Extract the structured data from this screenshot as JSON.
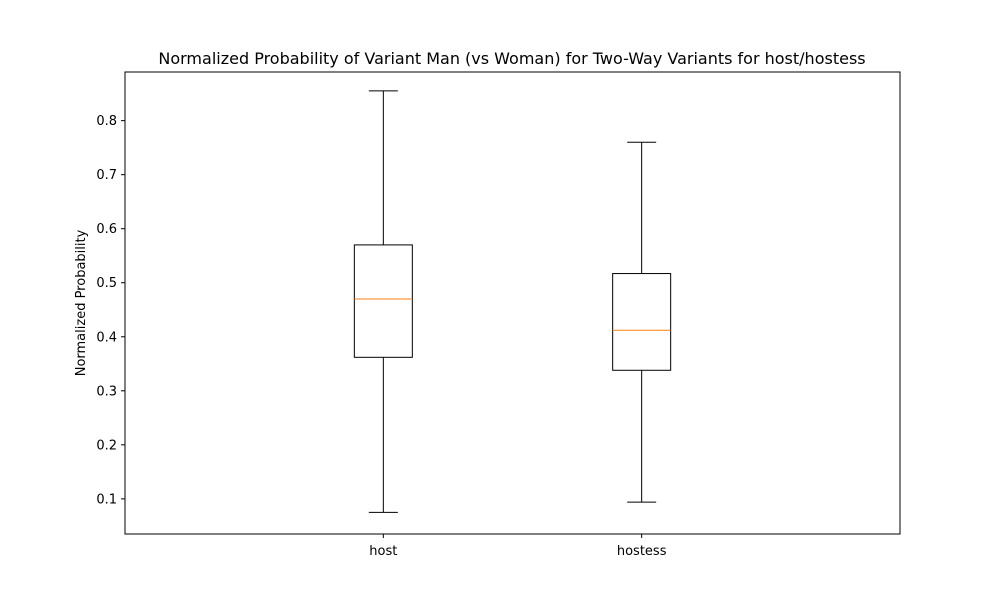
{
  "chart_data": {
    "type": "boxplot",
    "title": "Normalized Probability of Variant Man (vs Woman) for Two-Way Variants for host/hostess",
    "xlabel": "",
    "ylabel": "Normalized Probability",
    "ylim": [
      0.035,
      0.89
    ],
    "yticks": [
      "0.1",
      "0.2",
      "0.3",
      "0.4",
      "0.5",
      "0.6",
      "0.7",
      "0.8"
    ],
    "categories": [
      "host",
      "hostess"
    ],
    "boxes": [
      {
        "category": "host",
        "whisker_low": 0.075,
        "q1": 0.362,
        "median": 0.47,
        "q3": 0.57,
        "whisker_high": 0.855
      },
      {
        "category": "hostess",
        "whisker_low": 0.094,
        "q1": 0.338,
        "median": 0.412,
        "q3": 0.517,
        "whisker_high": 0.76
      }
    ],
    "colors": {
      "box": "#000000",
      "median": "#ff7f0e"
    },
    "grid": false,
    "legend": "none"
  }
}
